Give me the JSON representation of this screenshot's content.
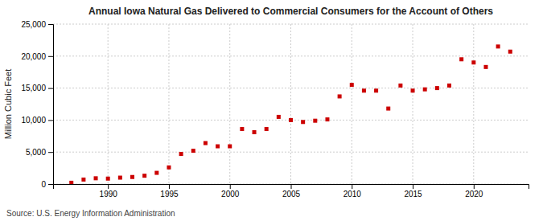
{
  "chart_data": {
    "type": "scatter",
    "title": "Annual Iowa Natural Gas Delivered to Commercial Consumers for the Account of Others",
    "ylabel": "Million Cubic Feet",
    "source": "Source: U.S. Energy Information Administration",
    "color": "#cc0000",
    "marker": "square",
    "grid": true,
    "xlim": [
      1985.5,
      2024.5
    ],
    "ylim": [
      0,
      25000
    ],
    "xticks": [
      1990,
      1995,
      2000,
      2005,
      2010,
      2015,
      2020
    ],
    "yticks": [
      0,
      {
        "value": 5000,
        "label": "5,000"
      },
      {
        "value": 10000,
        "label": "10,000"
      },
      {
        "value": 15000,
        "label": "15,000"
      },
      {
        "value": 20000,
        "label": "20,000"
      },
      {
        "value": 25000,
        "label": "25,000"
      }
    ],
    "x": [
      1987,
      1988,
      1989,
      1990,
      1991,
      1992,
      1993,
      1994,
      1995,
      1996,
      1997,
      1998,
      1999,
      2000,
      2001,
      2002,
      2003,
      2004,
      2005,
      2006,
      2007,
      2008,
      2009,
      2010,
      2011,
      2012,
      2013,
      2014,
      2015,
      2016,
      2017,
      2018,
      2019,
      2020,
      2021,
      2022,
      2023
    ],
    "values": [
      200,
      700,
      900,
      850,
      1000,
      1100,
      1300,
      1750,
      2600,
      4700,
      5200,
      6400,
      5900,
      5900,
      8600,
      8100,
      8600,
      10500,
      10000,
      9700,
      9900,
      10100,
      13700,
      15500,
      14600,
      14600,
      11800,
      15400,
      14600,
      14800,
      15000,
      15400,
      19500,
      19000,
      18300,
      21500,
      20700
    ]
  }
}
